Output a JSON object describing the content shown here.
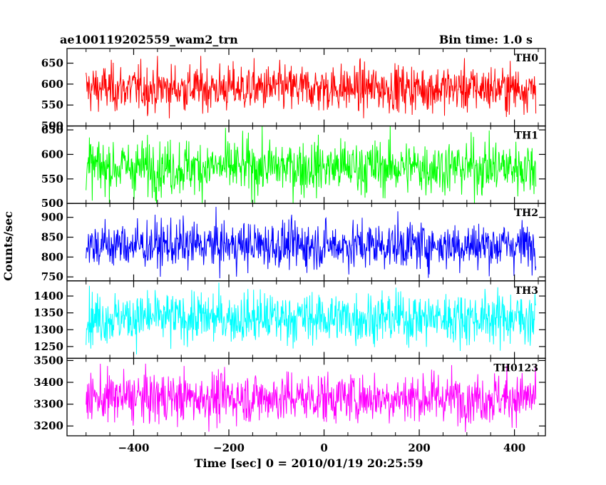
{
  "header": {
    "title": "ae100119202559_wam2_trn",
    "bin_time": "Bin time: 1.0 s"
  },
  "chart_data": {
    "type": "line",
    "title": "ae100119202559_wam2_trn",
    "xlabel": "Time [sec] 0 = 2010/01/19 20:25:59",
    "ylabel": "Counts/sec",
    "xlim": [
      -540,
      465
    ],
    "x_range": [
      -500,
      445
    ],
    "x_ticks": [
      -400,
      -200,
      0,
      200,
      400
    ],
    "x_tick_labels": [
      "−400",
      "−200",
      "0",
      "200",
      "400"
    ],
    "grid": false,
    "panels": [
      {
        "label": "TH0",
        "color": "#ff0000",
        "ylim": [
          500,
          685
        ],
        "yticks": [
          500,
          550,
          600,
          650
        ],
        "mean": 590,
        "sd": 28
      },
      {
        "label": "TH1",
        "color": "#00ff00",
        "ylim": [
          500,
          658
        ],
        "yticks": [
          500,
          550,
          600,
          650
        ],
        "mean": 574,
        "sd": 28
      },
      {
        "label": "TH2",
        "color": "#0000ff",
        "ylim": [
          740,
          935
        ],
        "yticks": [
          750,
          800,
          850,
          900
        ],
        "mean": 830,
        "sd": 30
      },
      {
        "label": "TH3",
        "color": "#00ffff",
        "ylim": [
          1215,
          1445
        ],
        "yticks": [
          1250,
          1300,
          1350,
          1400
        ],
        "mean": 1335,
        "sd": 38
      },
      {
        "label": "TH0123",
        "color": "#ff00ff",
        "ylim": [
          3155,
          3510
        ],
        "yticks": [
          3200,
          3300,
          3400,
          3500
        ],
        "mean": 3330,
        "sd": 58
      }
    ]
  }
}
